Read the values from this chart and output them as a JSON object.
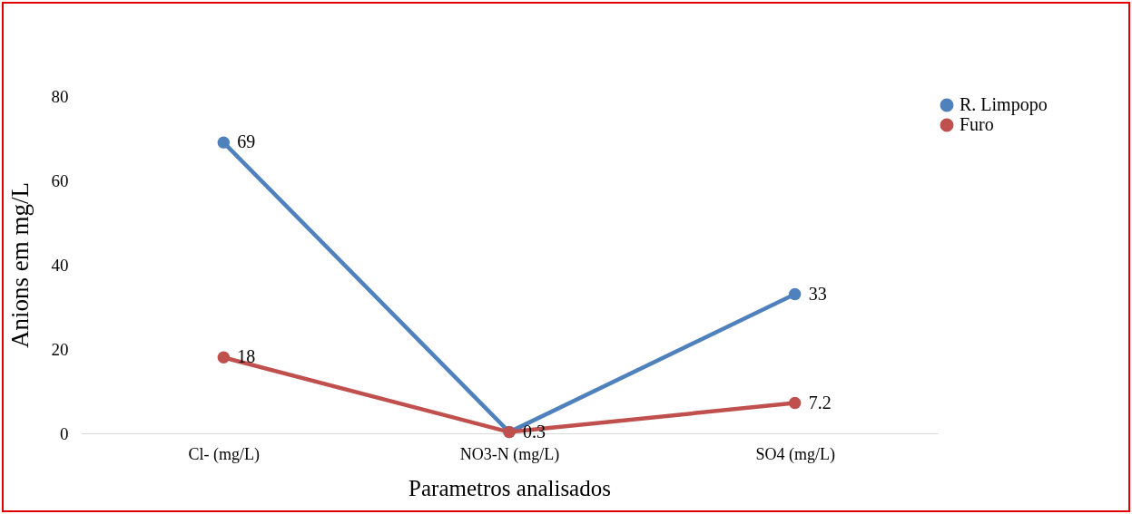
{
  "chart_data": {
    "type": "line",
    "xlabel": "Parametros analisados",
    "ylabel": "Anions em mg/L",
    "categories": [
      "Cl- (mg/L)",
      "NO3-N (mg/L)",
      "SO4 (mg/L)"
    ],
    "series": [
      {
        "name": "R. Limpopo",
        "color": "#4f81bd",
        "values": [
          69,
          0.3,
          33
        ],
        "value_labels": [
          "69",
          null,
          "33"
        ]
      },
      {
        "name": "Furo",
        "color": "#c0504d",
        "values": [
          18,
          0.3,
          7.2
        ],
        "value_labels": [
          "18",
          "0.3",
          "7.2"
        ]
      }
    ],
    "ylim": [
      0,
      80
    ],
    "yticks": [
      0,
      20,
      40,
      60,
      80
    ],
    "grid": false,
    "legend": "right",
    "marker": "circle",
    "line_style": "solid"
  }
}
